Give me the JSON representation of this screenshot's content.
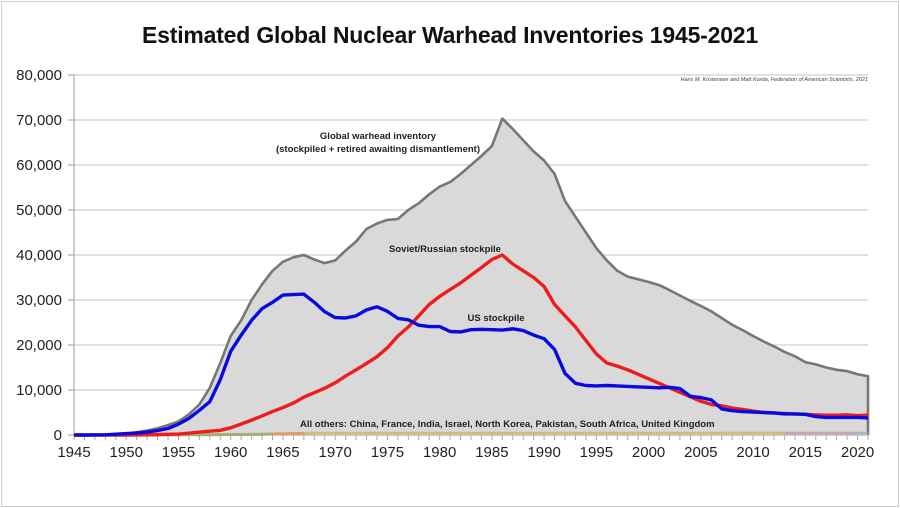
{
  "chart_data": {
    "type": "area",
    "title": "Estimated Global Nuclear Warhead Inventories 1945-2021",
    "source_credit": "Hans M. Kristensen and Matt Korda, Federation of American Scientists, 2021",
    "xlabel": "",
    "ylabel": "",
    "xlim": [
      1945,
      2021
    ],
    "ylim": [
      0,
      80000
    ],
    "grid": true,
    "y_ticks": [
      0,
      10000,
      20000,
      30000,
      40000,
      50000,
      60000,
      70000,
      80000
    ],
    "y_tick_labels": [
      "0",
      "10,000",
      "20,000",
      "30,000",
      "40,000",
      "50,000",
      "60,000",
      "70,000",
      "80,000"
    ],
    "x_ticks": [
      1945,
      1950,
      1955,
      1960,
      1965,
      1970,
      1975,
      1980,
      1985,
      1990,
      1995,
      2000,
      2005,
      2010,
      2015,
      2020
    ],
    "x_tick_labels": [
      "1945",
      "1950",
      "1955",
      "1960",
      "1965",
      "1970",
      "1975",
      "1980",
      "1985",
      "1990",
      "1995",
      "2000",
      "2005",
      "2010",
      "2015",
      "2020"
    ],
    "x": [
      1945,
      1946,
      1947,
      1948,
      1949,
      1950,
      1951,
      1952,
      1953,
      1954,
      1955,
      1956,
      1957,
      1958,
      1959,
      1960,
      1961,
      1962,
      1963,
      1964,
      1965,
      1966,
      1967,
      1968,
      1969,
      1970,
      1971,
      1972,
      1973,
      1974,
      1975,
      1976,
      1977,
      1978,
      1979,
      1980,
      1981,
      1982,
      1983,
      1984,
      1985,
      1986,
      1987,
      1988,
      1989,
      1990,
      1991,
      1992,
      1993,
      1994,
      1995,
      1996,
      1997,
      1998,
      1999,
      2000,
      2001,
      2002,
      2003,
      2004,
      2005,
      2006,
      2007,
      2008,
      2009,
      2010,
      2011,
      2012,
      2013,
      2014,
      2015,
      2016,
      2017,
      2018,
      2019,
      2020,
      2021
    ],
    "series": [
      {
        "name": "Global warhead inventory",
        "annotation": "Global warhead inventory\n(stockpiled + retired awaiting dismantlement)",
        "kind": "area",
        "color": "#777777",
        "fill": "#d9d9d9",
        "values": [
          2,
          9,
          13,
          50,
          170,
          300,
          600,
          1000,
          1500,
          2200,
          3000,
          4600,
          6800,
          10500,
          16000,
          22000,
          25500,
          30000,
          33500,
          36500,
          38500,
          39500,
          40000,
          39000,
          38200,
          38800,
          41000,
          43000,
          45800,
          47000,
          47800,
          48000,
          50000,
          51500,
          53500,
          55200,
          56200,
          58000,
          60000,
          62000,
          64200,
          70300,
          68000,
          65500,
          63000,
          61000,
          58000,
          52000,
          48500,
          45000,
          41500,
          38800,
          36500,
          35200,
          34600,
          34000,
          33300,
          32200,
          31000,
          29800,
          28700,
          27500,
          26000,
          24500,
          23300,
          22000,
          20800,
          19700,
          18500,
          17500,
          16200,
          15700,
          15000,
          14500,
          14200,
          13500,
          13100
        ]
      },
      {
        "name": "Soviet/Russian stockpile",
        "annotation": "Soviet/Russian stockpile",
        "kind": "line",
        "color": "#ee1c1c",
        "values": [
          0,
          0,
          0,
          0,
          1,
          5,
          25,
          50,
          120,
          150,
          200,
          400,
          650,
          850,
          1050,
          1600,
          2450,
          3300,
          4250,
          5200,
          6100,
          7100,
          8400,
          9400,
          10400,
          11600,
          13100,
          14500,
          15900,
          17400,
          19400,
          22000,
          24000,
          26500,
          29000,
          30800,
          32300,
          33800,
          35500,
          37200,
          39000,
          40000,
          38000,
          36500,
          35000,
          33000,
          29000,
          26500,
          24000,
          21000,
          18000,
          16000,
          15300,
          14500,
          13500,
          12500,
          11500,
          10500,
          9500,
          8500,
          7500,
          6800,
          6500,
          6000,
          5700,
          5300,
          5000,
          4900,
          4800,
          4700,
          4600,
          4500,
          4400,
          4400,
          4500,
          4300,
          4400
        ]
      },
      {
        "name": "US stockpile",
        "annotation": "US stockpile",
        "kind": "line",
        "color": "#0a0ae0",
        "values": [
          2,
          9,
          13,
          50,
          170,
          300,
          450,
          650,
          1000,
          1450,
          2400,
          3700,
          5500,
          7400,
          12300,
          18600,
          22200,
          25500,
          28100,
          29500,
          31100,
          31200,
          31300,
          29500,
          27400,
          26100,
          26000,
          26500,
          27800,
          28500,
          27500,
          25900,
          25600,
          24400,
          24100,
          24100,
          23000,
          22900,
          23400,
          23500,
          23400,
          23300,
          23600,
          23200,
          22200,
          21400,
          19000,
          13700,
          11500,
          11000,
          10900,
          11000,
          10900,
          10800,
          10700,
          10600,
          10500,
          10600,
          10300,
          8600,
          8300,
          7800,
          5800,
          5400,
          5200,
          5100,
          5000,
          4900,
          4700,
          4700,
          4600,
          4100,
          3900,
          3900,
          3900,
          3900,
          3800
        ]
      },
      {
        "name": "All others",
        "annotation": "All others: China, France, India, Israel, North Korea, Pakistan, South Africa, United Kingdom",
        "kind": "line",
        "color": "#8aa84e",
        "values": [
          0,
          0,
          0,
          0,
          0,
          0,
          0,
          0,
          10,
          20,
          30,
          40,
          60,
          80,
          100,
          110,
          120,
          140,
          180,
          220,
          260,
          300,
          350,
          400,
          450,
          500,
          550,
          600,
          650,
          700,
          750,
          800,
          850,
          900,
          950,
          1000,
          1050,
          1100,
          1150,
          1200,
          1250,
          1300,
          1350,
          1350,
          1400,
          1400,
          1400,
          1300,
          1200,
          1100,
          1050,
          1050,
          1000,
          1000,
          950,
          950,
          950,
          950,
          950,
          950,
          950,
          950,
          950,
          950,
          950,
          950,
          950,
          950,
          1000,
          1000,
          1000,
          1050,
          1050,
          1100,
          1100,
          1150,
          1200
        ]
      }
    ],
    "others_segment_colors": [
      "#ee3333",
      "#8aa84e",
      "#e08a3c",
      "#c8b060",
      "#b896a8",
      "#9aa6c8"
    ],
    "annotations_text": {
      "global": [
        "Global warhead inventory",
        "(stockpiled + retired awaiting dismantlement)"
      ],
      "soviet": "Soviet/Russian stockpile",
      "us": "US stockpile",
      "others": "All others: China, France, India, Israel, North Korea, Pakistan, South Africa, United Kingdom"
    }
  }
}
